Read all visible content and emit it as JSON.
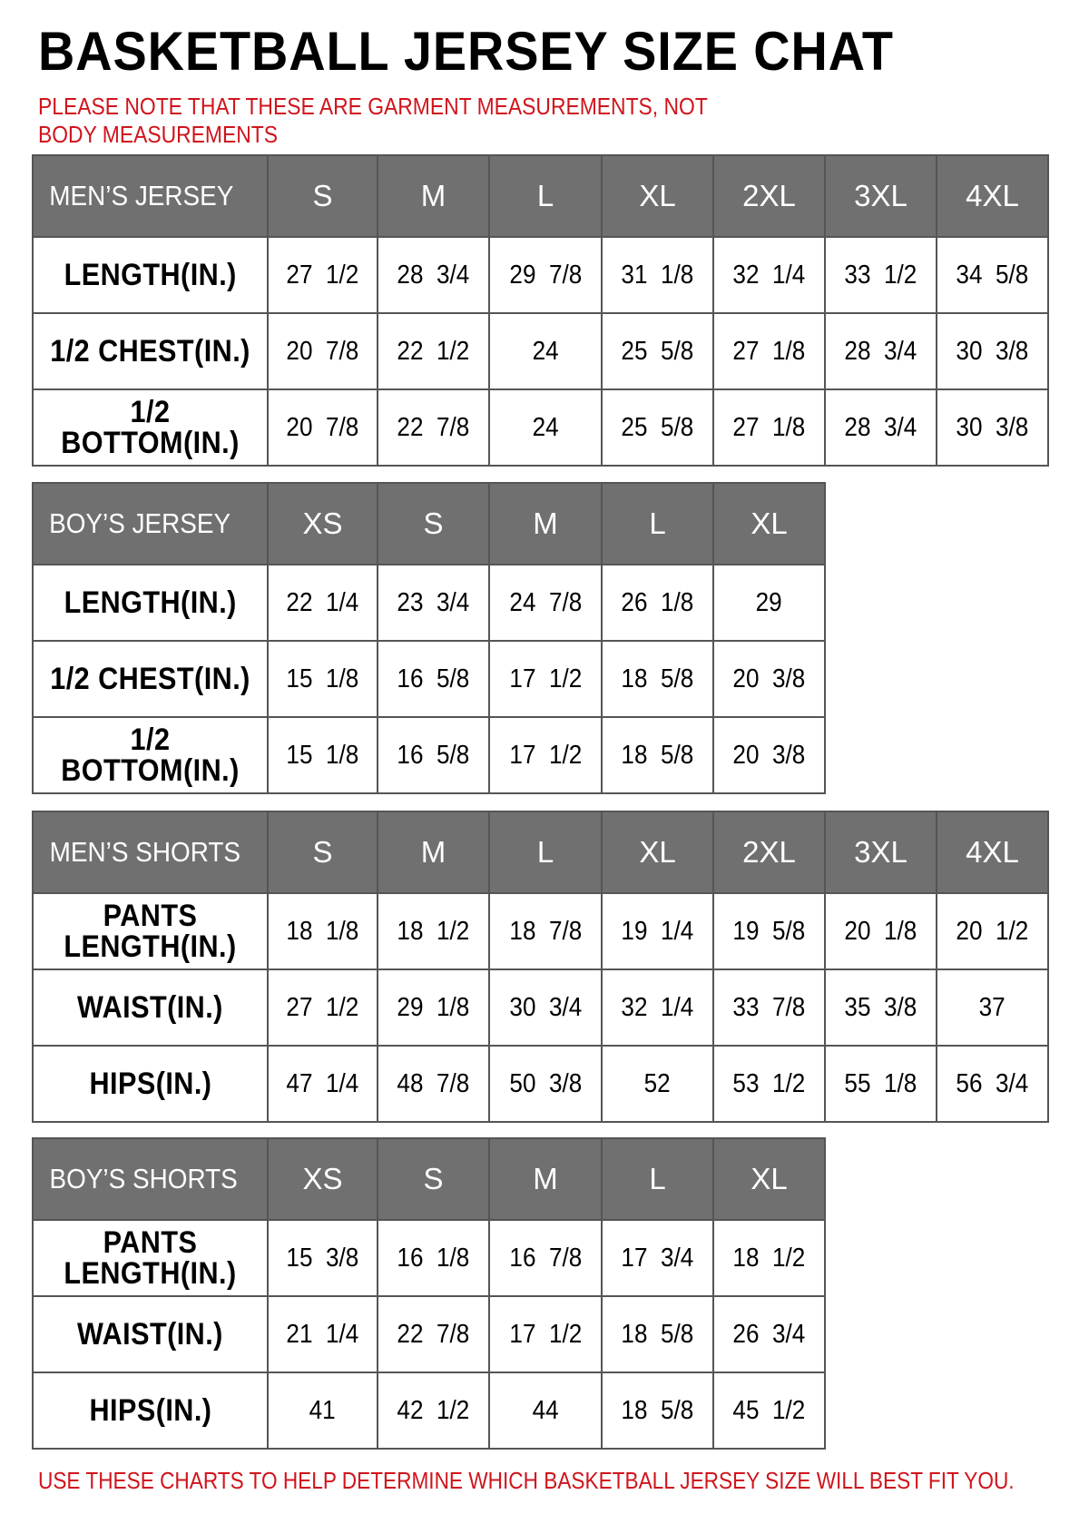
{
  "title": "BASKETBALL JERSEY SIZE CHAT",
  "note": "PLEASE NOTE THAT THESE ARE GARMENT MEASUREMENTS, NOT BODY MEASUREMENTS",
  "footer": "USE THESE CHARTS TO HELP DETERMINE WHICH BASKETBALL JERSEY SIZE WILL BEST FIT YOU.",
  "colors": {
    "header_bg": "#707070",
    "note_red": "#d0141c"
  },
  "tables": [
    {
      "caption": "MEN’S JERSEY",
      "sizes": [
        "S",
        "M",
        "L",
        "XL",
        "2XL",
        "3XL",
        "4XL"
      ],
      "rows": [
        {
          "label": "LENGTH(IN.)",
          "values": [
            "27  1/2",
            "28  3/4",
            "29  7/8",
            "31  1/8",
            "32  1/4",
            "33  1/2",
            "34  5/8"
          ]
        },
        {
          "label": "1/2  CHEST(IN.)",
          "values": [
            "20  7/8",
            "22  1/2",
            "24",
            "25  5/8",
            "27  1/8",
            "28  3/4",
            "30  3/8"
          ]
        },
        {
          "label": "1/2  BOTTOM(IN.)",
          "values": [
            "20  7/8",
            "22  7/8",
            "24",
            "25  5/8",
            "27  1/8",
            "28  3/4",
            "30  3/8"
          ]
        }
      ]
    },
    {
      "caption": "BOY’S JERSEY",
      "sizes": [
        "XS",
        "S",
        "M",
        "L",
        "XL"
      ],
      "rows": [
        {
          "label": "LENGTH(IN.)",
          "values": [
            "22  1/4",
            "23  3/4",
            "24  7/8",
            "26  1/8",
            "29"
          ]
        },
        {
          "label": "1/2  CHEST(IN.)",
          "values": [
            "15  1/8",
            "16  5/8",
            "17  1/2",
            "18  5/8",
            "20  3/8"
          ]
        },
        {
          "label": "1/2  BOTTOM(IN.)",
          "values": [
            "15  1/8",
            "16  5/8",
            "17  1/2",
            "18  5/8",
            "20  3/8"
          ]
        }
      ]
    },
    {
      "caption": "MEN’S SHORTS",
      "sizes": [
        "S",
        "M",
        "L",
        "XL",
        "2XL",
        "3XL",
        "4XL"
      ],
      "rows": [
        {
          "label": "PANTS LENGTH(IN.)",
          "values": [
            "18  1/8",
            "18  1/2",
            "18  7/8",
            "19  1/4",
            "19  5/8",
            "20  1/8",
            "20  1/2"
          ]
        },
        {
          "label": "WAIST(IN.)",
          "values": [
            "27  1/2",
            "29  1/8",
            "30  3/4",
            "32  1/4",
            "33  7/8",
            "35  3/8",
            "37"
          ]
        },
        {
          "label": "HIPS(IN.)",
          "values": [
            "47  1/4",
            "48  7/8",
            "50  3/8",
            "52",
            "53  1/2",
            "55  1/8",
            "56  3/4"
          ]
        }
      ]
    },
    {
      "caption": "BOY’S SHORTS",
      "sizes": [
        "XS",
        "S",
        "M",
        "L",
        "XL"
      ],
      "rows": [
        {
          "label": "PANTS LENGTH(IN.)",
          "values": [
            "15  3/8",
            "16  1/8",
            "16  7/8",
            "17  3/4",
            "18  1/2"
          ]
        },
        {
          "label": "WAIST(IN.)",
          "values": [
            "21  1/4",
            "22  7/8",
            "17  1/2",
            "18  5/8",
            "26  3/4"
          ]
        },
        {
          "label": "HIPS(IN.)",
          "values": [
            "41",
            "42  1/2",
            "44",
            "18  5/8",
            "45  1/2"
          ]
        }
      ]
    }
  ]
}
